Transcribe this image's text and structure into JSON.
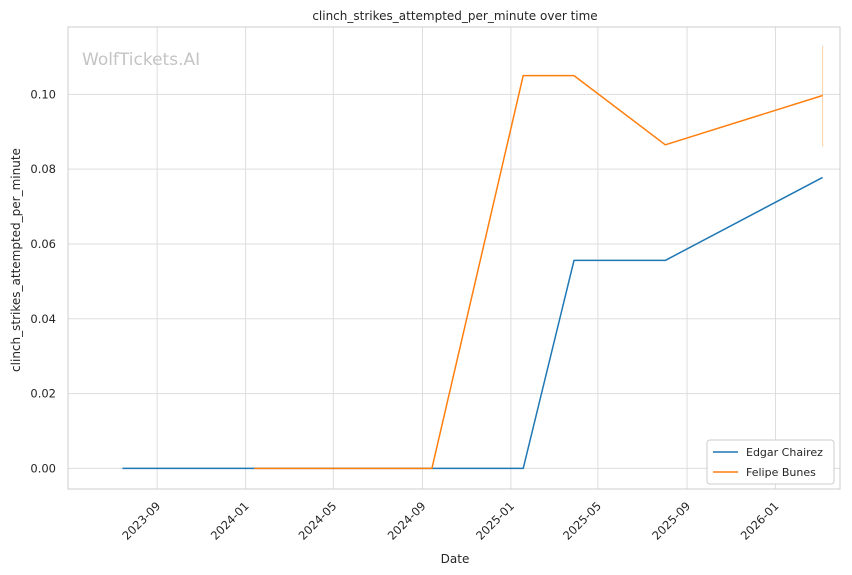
{
  "chart_data": {
    "type": "line",
    "title": "clinch_strikes_attempted_per_minute over time",
    "xlabel": "Date",
    "ylabel": "clinch_strikes_attempted_per_minute",
    "watermark": "WolfTickets.AI",
    "x_axis_kind": "date",
    "xlim": [
      "2023-05-01",
      "2026-03-31"
    ],
    "ylim": [
      -0.0055,
      0.118
    ],
    "x_ticks": [
      "2023-09",
      "2024-01",
      "2024-05",
      "2024-09",
      "2025-01",
      "2025-05",
      "2025-09",
      "2026-01"
    ],
    "y_ticks": [
      "0.00",
      "0.02",
      "0.04",
      "0.06",
      "0.08",
      "0.10"
    ],
    "grid": true,
    "legend_position": "lower-right",
    "series": [
      {
        "name": "Edgar Chairez",
        "color": "#1f77b4",
        "x": [
          "2023-07-15",
          "2024-01-13",
          "2024-09-14",
          "2025-01-18",
          "2025-03-29",
          "2025-08-02",
          "2026-03-07"
        ],
        "y": [
          0.0,
          0.0,
          0.0,
          0.0,
          0.0556,
          0.0556,
          0.0778
        ]
      },
      {
        "name": "Felipe Bunes",
        "color": "#ff7f0e",
        "x": [
          "2024-01-13",
          "2024-09-14",
          "2025-01-18",
          "2025-03-29",
          "2025-08-02",
          "2026-03-07"
        ],
        "y": [
          0.0,
          0.0,
          0.105,
          0.105,
          0.0865,
          0.0997
        ],
        "error_band": {
          "x": "2026-03-07",
          "low": 0.086,
          "high": 0.113
        }
      }
    ]
  }
}
